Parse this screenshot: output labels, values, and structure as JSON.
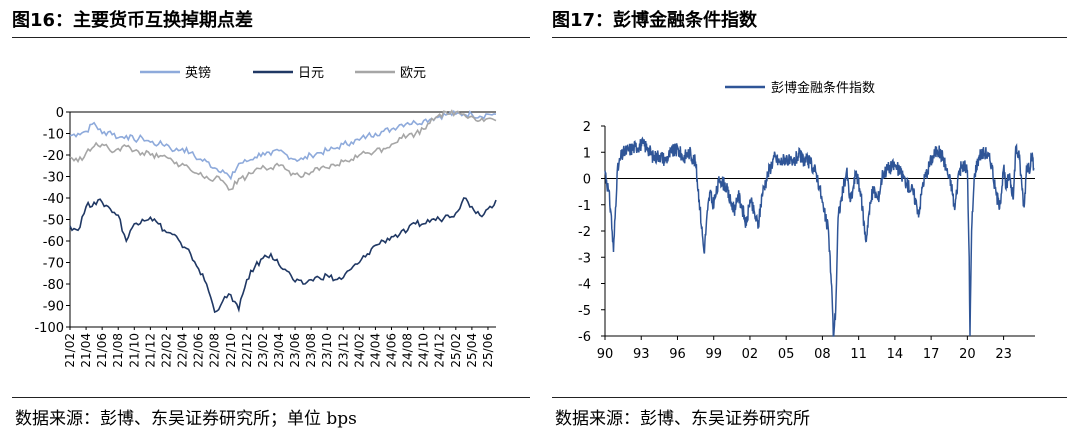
{
  "left_panel": {
    "title": "图16：主要货币互换掉期点差",
    "source": "数据来源：彭博、东吴证券研究所；单位 bps"
  },
  "right_panel": {
    "title": "图17：彭博金融条件指数",
    "source": "数据来源：彭博、东吴证券研究所"
  },
  "colors": {
    "gbp": "#8eaadb",
    "jpy": "#203864",
    "eur": "#a6a6a6",
    "index": "#2f5597",
    "rule": "#222222"
  },
  "chart_data": [
    {
      "type": "line",
      "title": "",
      "ylim": [
        -100,
        0
      ],
      "yticks": [
        0,
        -10,
        -20,
        -30,
        -40,
        -50,
        -60,
        -70,
        -80,
        -90,
        -100
      ],
      "xticks": [
        "21/02",
        "21/04",
        "21/06",
        "21/08",
        "21/10",
        "21/12",
        "22/02",
        "22/04",
        "22/06",
        "22/08",
        "22/10",
        "22/12",
        "23/02",
        "23/04",
        "23/06",
        "23/08",
        "23/10",
        "23/12",
        "24/02",
        "24/04",
        "24/06",
        "24/08",
        "24/10",
        "24/12",
        "25/02",
        "25/04",
        "25/06"
      ],
      "legend_position": "top",
      "series": [
        {
          "name": "英镑",
          "x": [
            "21/02",
            "21/03",
            "21/04",
            "21/05",
            "21/06",
            "21/07",
            "21/08",
            "21/09",
            "21/10",
            "21/11",
            "21/12",
            "22/01",
            "22/02",
            "22/03",
            "22/04",
            "22/05",
            "22/06",
            "22/07",
            "22/08",
            "22/09",
            "22/10",
            "22/11",
            "22/12",
            "23/01",
            "23/02",
            "23/03",
            "23/04",
            "23/05",
            "23/06",
            "23/07",
            "23/08",
            "23/09",
            "23/10",
            "23/11",
            "23/12",
            "24/01",
            "24/02",
            "24/03",
            "24/04",
            "24/05",
            "24/06",
            "24/07",
            "24/08",
            "24/09",
            "24/10",
            "24/11",
            "24/12",
            "25/01",
            "25/02",
            "25/03",
            "25/04",
            "25/05",
            "25/06",
            "25/07"
          ],
          "values": [
            -11,
            -10,
            -9,
            -5,
            -10,
            -9,
            -12,
            -11,
            -13,
            -12,
            -14,
            -15,
            -15,
            -18,
            -17,
            -19,
            -22,
            -23,
            -26,
            -27,
            -31,
            -24,
            -23,
            -21,
            -19,
            -20,
            -18,
            -20,
            -22,
            -22,
            -20,
            -19,
            -18,
            -17,
            -15,
            -14,
            -13,
            -11,
            -10,
            -9,
            -8,
            -6,
            -5,
            -5,
            -4,
            -3,
            -2,
            -1,
            -1,
            -1,
            -1,
            -2,
            -1,
            -1
          ]
        },
        {
          "name": "日元",
          "x": [
            "21/02",
            "21/03",
            "21/04",
            "21/05",
            "21/06",
            "21/07",
            "21/08",
            "21/09",
            "21/10",
            "21/11",
            "21/12",
            "22/01",
            "22/02",
            "22/03",
            "22/04",
            "22/05",
            "22/06",
            "22/07",
            "22/08",
            "22/09",
            "22/10",
            "22/11",
            "22/12",
            "23/01",
            "23/02",
            "23/03",
            "23/04",
            "23/05",
            "23/06",
            "23/07",
            "23/08",
            "23/09",
            "23/10",
            "23/11",
            "23/12",
            "24/01",
            "24/02",
            "24/03",
            "24/04",
            "24/05",
            "24/06",
            "24/07",
            "24/08",
            "24/09",
            "24/10",
            "24/11",
            "24/12",
            "25/01",
            "25/02",
            "25/03",
            "25/04",
            "25/05",
            "25/06",
            "25/07"
          ],
          "values": [
            -53,
            -55,
            -44,
            -42,
            -42,
            -45,
            -48,
            -60,
            -52,
            -50,
            -49,
            -52,
            -56,
            -57,
            -63,
            -66,
            -73,
            -80,
            -93,
            -88,
            -85,
            -92,
            -78,
            -72,
            -68,
            -66,
            -71,
            -74,
            -79,
            -80,
            -78,
            -77,
            -76,
            -78,
            -77,
            -73,
            -70,
            -66,
            -62,
            -60,
            -58,
            -57,
            -55,
            -52,
            -52,
            -50,
            -50,
            -48,
            -47,
            -40,
            -44,
            -48,
            -45,
            -41
          ]
        },
        {
          "name": "欧元",
          "x": [
            "21/02",
            "21/03",
            "21/04",
            "21/05",
            "21/06",
            "21/07",
            "21/08",
            "21/09",
            "21/10",
            "21/11",
            "21/12",
            "22/01",
            "22/02",
            "22/03",
            "22/04",
            "22/05",
            "22/06",
            "22/07",
            "22/08",
            "22/09",
            "22/10",
            "22/11",
            "22/12",
            "23/01",
            "23/02",
            "23/03",
            "23/04",
            "23/05",
            "23/06",
            "23/07",
            "23/08",
            "23/09",
            "23/10",
            "23/11",
            "23/12",
            "24/01",
            "24/02",
            "24/03",
            "24/04",
            "24/05",
            "24/06",
            "24/07",
            "24/08",
            "24/09",
            "24/10",
            "24/11",
            "24/12",
            "25/01",
            "25/02",
            "25/03",
            "25/04",
            "25/05",
            "25/06",
            "25/07"
          ],
          "values": [
            -21,
            -23,
            -19,
            -16,
            -15,
            -18,
            -17,
            -16,
            -18,
            -19,
            -20,
            -21,
            -21,
            -24,
            -24,
            -27,
            -29,
            -30,
            -31,
            -32,
            -36,
            -31,
            -30,
            -27,
            -25,
            -26,
            -25,
            -27,
            -29,
            -30,
            -28,
            -27,
            -26,
            -25,
            -23,
            -22,
            -20,
            -19,
            -18,
            -17,
            -15,
            -12,
            -11,
            -10,
            -8,
            -3,
            -1,
            -1,
            0,
            -1,
            -2,
            -4,
            -3,
            -4
          ]
        }
      ]
    },
    {
      "type": "line",
      "title": "",
      "ylim": [
        -6,
        2
      ],
      "yticks": [
        2,
        1,
        0,
        -1,
        -2,
        -3,
        -4,
        -5,
        -6
      ],
      "xlim": [
        1990,
        2025.6
      ],
      "xticks": [
        "90",
        "93",
        "96",
        "99",
        "02",
        "05",
        "08",
        "11",
        "14",
        "17",
        "20",
        "23"
      ],
      "legend_position": "top-center",
      "series": [
        {
          "name": "彭博金融条件指数",
          "x": [
            1990.0,
            1990.3,
            1990.5,
            1990.7,
            1991.0,
            1991.3,
            1991.6,
            1992.0,
            1992.5,
            1993.0,
            1993.5,
            1994.0,
            1994.5,
            1995.0,
            1995.5,
            1996.0,
            1996.5,
            1997.0,
            1997.5,
            1997.8,
            1998.2,
            1998.5,
            1998.7,
            1998.9,
            1999.2,
            1999.5,
            2000.0,
            2000.4,
            2000.8,
            2001.0,
            2001.3,
            2001.7,
            2002.0,
            2002.4,
            2002.7,
            2003.0,
            2003.5,
            2004.0,
            2004.5,
            2005.0,
            2005.5,
            2006.0,
            2006.5,
            2007.0,
            2007.5,
            2007.8,
            2008.1,
            2008.5,
            2008.8,
            2008.9,
            2009.1,
            2009.3,
            2009.6,
            2010.0,
            2010.3,
            2010.5,
            2010.8,
            2011.2,
            2011.6,
            2011.8,
            2012.2,
            2012.6,
            2013.0,
            2013.5,
            2014.0,
            2014.5,
            2015.0,
            2015.5,
            2015.8,
            2016.0,
            2016.3,
            2016.7,
            2017.0,
            2017.5,
            2018.0,
            2018.3,
            2018.7,
            2018.95,
            2019.3,
            2019.7,
            2020.0,
            2020.15,
            2020.22,
            2020.35,
            2020.6,
            2021.0,
            2021.5,
            2022.0,
            2022.3,
            2022.6,
            2022.8,
            2023.0,
            2023.2,
            2023.5,
            2023.8,
            2024.0,
            2024.3,
            2024.5,
            2024.7,
            2024.9,
            2025.1,
            2025.3,
            2025.5
          ],
          "values": [
            0.3,
            -0.5,
            -1.3,
            -2.8,
            0.2,
            0.8,
            1.0,
            1.1,
            1.2,
            1.3,
            1.2,
            0.8,
            0.9,
            0.7,
            1.0,
            1.1,
            0.8,
            1.0,
            0.6,
            -0.8,
            -2.8,
            -1.2,
            -0.5,
            -1.0,
            -0.6,
            0.0,
            -0.3,
            -0.9,
            -1.2,
            -0.6,
            -1.0,
            -1.8,
            -0.8,
            -1.4,
            -1.8,
            -0.6,
            0.2,
            0.8,
            0.6,
            0.8,
            0.5,
            0.9,
            0.7,
            0.6,
            0.2,
            -0.4,
            -1.2,
            -2.0,
            -4.5,
            -6.0,
            -5.0,
            -1.5,
            -0.7,
            0.3,
            -0.9,
            -0.5,
            0.3,
            -0.7,
            -2.4,
            -1.5,
            -0.4,
            -0.8,
            0.2,
            0.4,
            0.5,
            0.2,
            -0.2,
            -0.5,
            -1.0,
            -1.3,
            -0.2,
            0.3,
            0.7,
            1.1,
            0.8,
            0.3,
            -0.3,
            -1.2,
            0.3,
            0.5,
            0.3,
            -3.0,
            -6.0,
            -2.0,
            0.2,
            0.9,
            1.0,
            0.6,
            -0.4,
            -1.0,
            -0.6,
            0.4,
            -0.4,
            0.2,
            -0.8,
            1.2,
            0.8,
            -0.2,
            -1.1,
            0.5,
            0.3,
            0.9,
            0.4
          ]
        }
      ]
    }
  ]
}
